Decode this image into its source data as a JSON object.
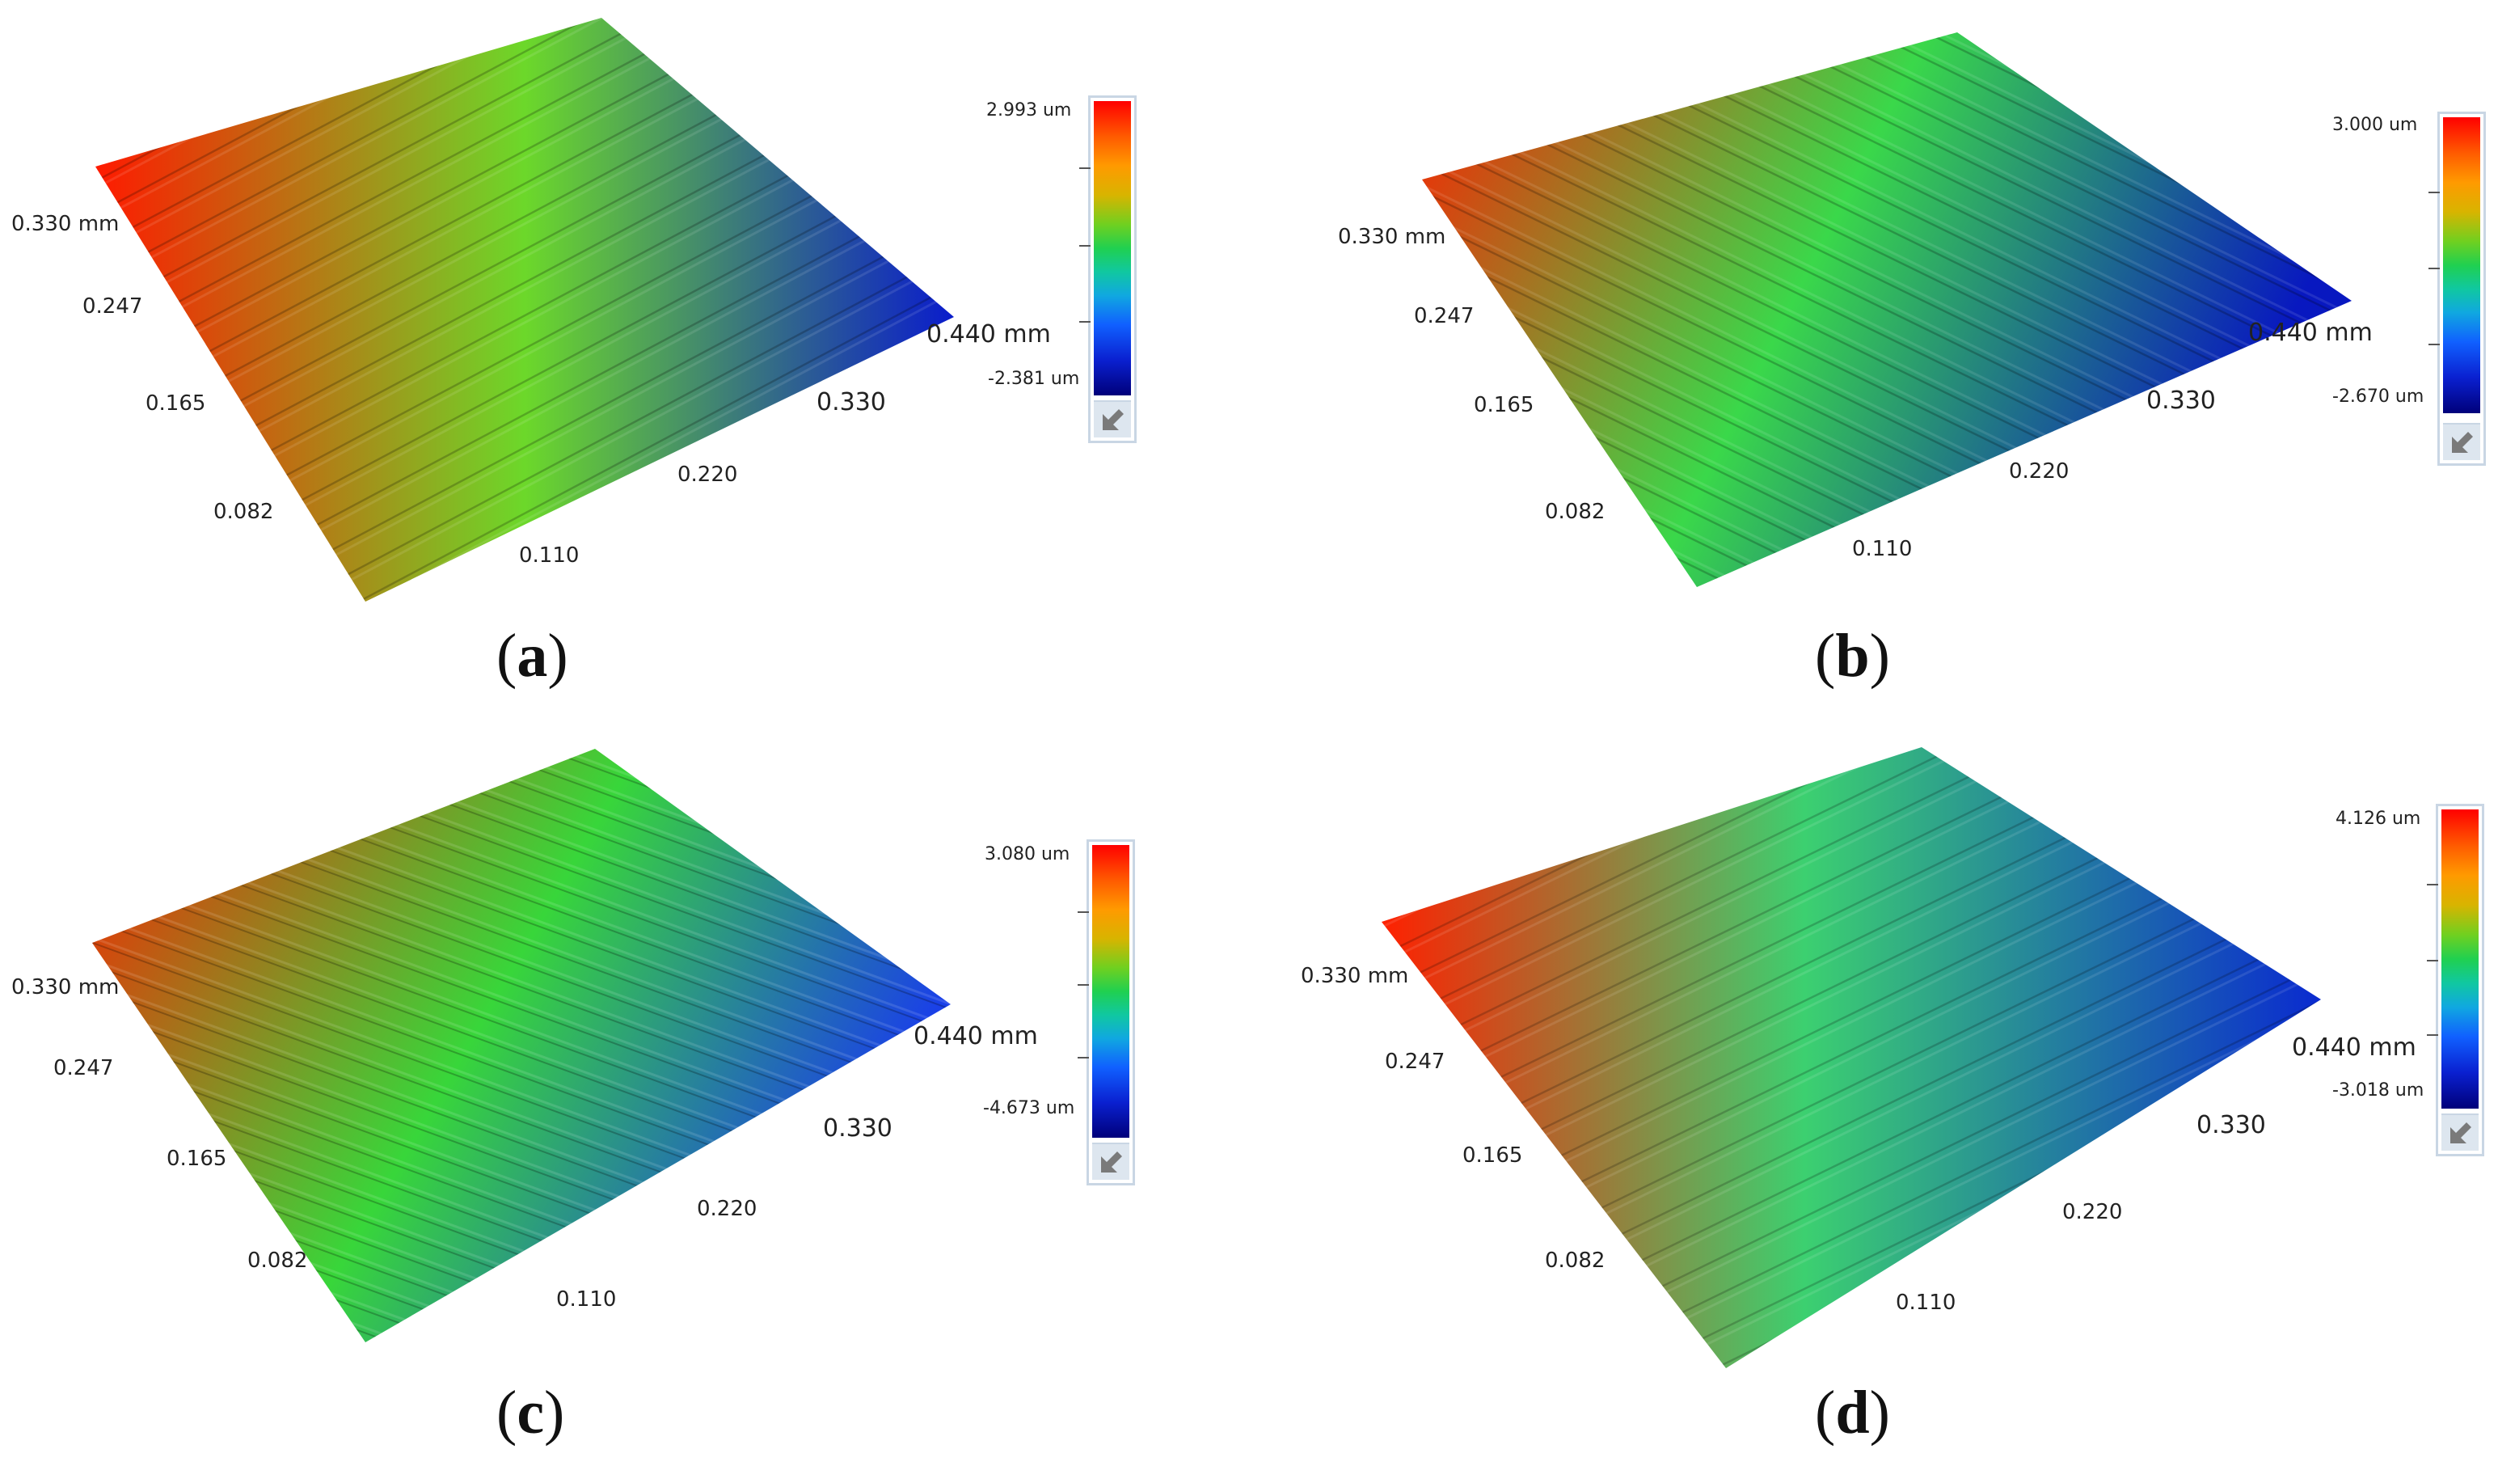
{
  "panels": [
    {
      "caption_open": "(",
      "caption_letter": "a",
      "caption_close": ")",
      "colorbar": {
        "max": "2.993 um",
        "min": "-2.381 um"
      },
      "axis_labels": {
        "y_max": "0.330 mm",
        "y_247": "0.247",
        "y_165": "0.165",
        "y_082": "0.082",
        "x_110": "0.110",
        "x_220": "0.220",
        "x_330": "0.330",
        "x_max": "0.440 mm"
      },
      "colors": {
        "left": "#ff1a00",
        "mid": "#6cd82a",
        "right": "#0a1ccc"
      }
    },
    {
      "caption_open": "(",
      "caption_letter": "b",
      "caption_close": ")",
      "colorbar": {
        "max": "3.000 um",
        "min": "-2.670 um"
      },
      "axis_labels": {
        "y_max": "0.330 mm",
        "y_247": "0.247",
        "y_165": "0.165",
        "y_082": "0.082",
        "x_110": "0.110",
        "x_220": "0.220",
        "x_330": "0.330",
        "x_max": "0.440 mm"
      },
      "colors": {
        "left": "#ff1f00",
        "mid": "#3ad84a",
        "right": "#0818c0"
      }
    },
    {
      "caption_open": "(",
      "caption_letter": "c",
      "caption_close": ")",
      "colorbar": {
        "max": "3.080 um",
        "min": "-4.673 um"
      },
      "axis_labels": {
        "y_max": "0.330 mm",
        "y_247": "0.247",
        "y_165": "0.165",
        "y_082": "0.082",
        "x_110": "0.110",
        "x_220": "0.220",
        "x_330": "0.330",
        "x_max": "0.440 mm"
      },
      "colors": {
        "left": "#ff2000",
        "mid": "#38d63a",
        "right": "#1a40e8"
      }
    },
    {
      "caption_open": "(",
      "caption_letter": "d",
      "caption_close": ")",
      "colorbar": {
        "max": "4.126 um",
        "min": "-3.018 um"
      },
      "axis_labels": {
        "y_max": "0.330 mm",
        "y_247": "0.247",
        "y_165": "0.165",
        "y_082": "0.082",
        "x_110": "0.110",
        "x_220": "0.220",
        "x_330": "0.330",
        "x_max": "0.440 mm"
      },
      "colors": {
        "left": "#ff2000",
        "mid": "#3cd070",
        "right": "#0a2ad0"
      }
    }
  ]
}
